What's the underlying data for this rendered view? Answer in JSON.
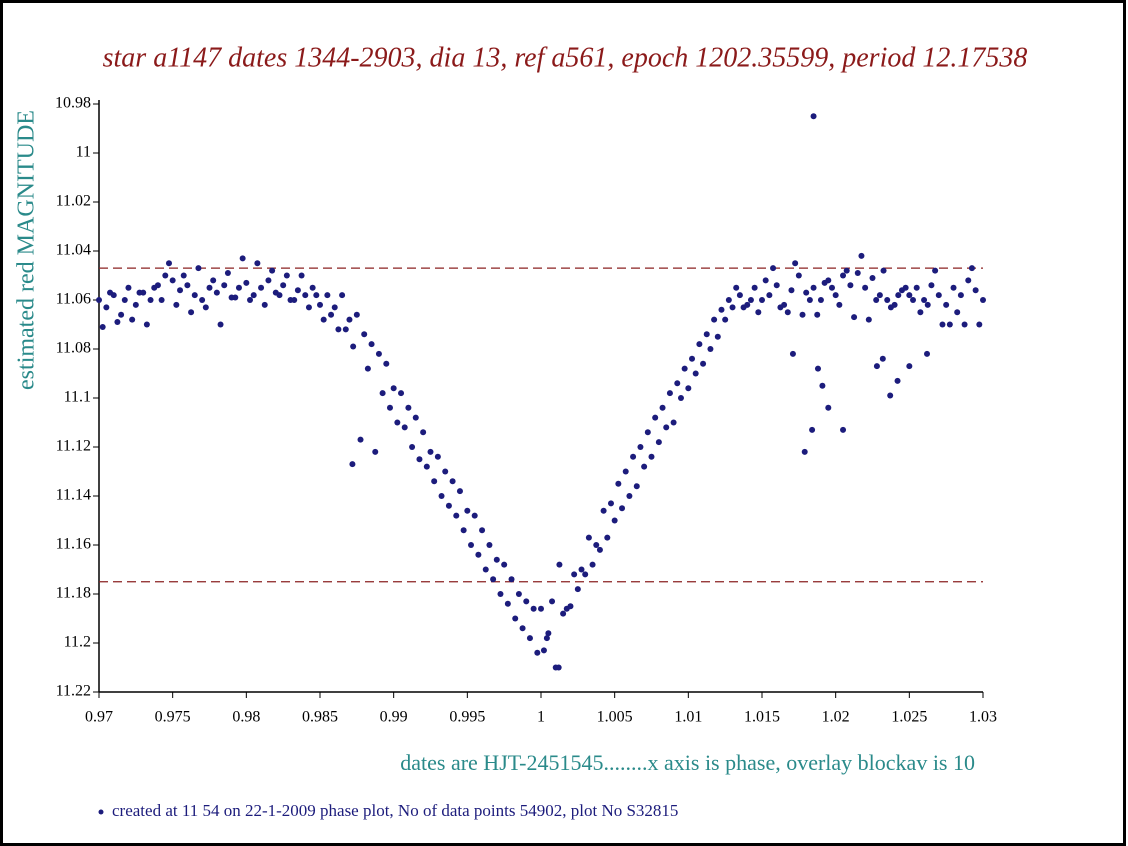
{
  "chart_data": {
    "type": "scatter",
    "title": "star a1147 dates 1344-2903, dia 13, ref a561, epoch 1202.35599, period 12.17538",
    "y_label": "estimated red MAGNITUDE",
    "x_annotation": "dates are HJT-2451545........x axis is phase, overlay blockav is 10",
    "footer": "created at 11 54 on 22-1-2009 phase plot, No of data points 54902,  plot No S32815",
    "color": "#1c1c7c",
    "reference_lines": [
      11.047,
      11.175
    ],
    "reference_color": "#8b2222",
    "y_inverted": true,
    "xlim": [
      0.97,
      1.03
    ],
    "xticks": [
      0.97,
      0.975,
      0.98,
      0.985,
      0.99,
      0.995,
      1,
      1.005,
      1.01,
      1.015,
      1.02,
      1.025,
      1.03
    ],
    "ylim": [
      10.98,
      11.22
    ],
    "yticks": [
      10.98,
      11,
      11.02,
      11.04,
      11.06,
      11.08,
      11.1,
      11.12,
      11.14,
      11.16,
      11.18,
      11.2,
      11.22
    ],
    "x": [
      0.97,
      0.9705,
      0.971,
      0.9715,
      0.972,
      0.9725,
      0.973,
      0.9735,
      0.974,
      0.9745,
      0.975,
      0.9755,
      0.976,
      0.9765,
      0.977,
      0.9775,
      0.978,
      0.9785,
      0.979,
      0.9795,
      0.98,
      0.9805,
      0.981,
      0.9815,
      0.982,
      0.9825,
      0.983,
      0.9835,
      0.984,
      0.9845,
      0.985,
      0.9855,
      0.986,
      0.97025,
      0.97075,
      0.97125,
      0.97175,
      0.97225,
      0.97275,
      0.97325,
      0.97375,
      0.97425,
      0.97475,
      0.97525,
      0.97575,
      0.97625,
      0.97675,
      0.97725,
      0.97775,
      0.97825,
      0.97875,
      0.97925,
      0.97975,
      0.98025,
      0.98075,
      0.98125,
      0.98175,
      0.98225,
      0.98275,
      0.98325,
      0.98375,
      0.98425,
      0.98475,
      0.98525,
      0.98575,
      0.98625,
      0.9865,
      0.987,
      0.9875,
      0.988,
      0.9885,
      0.989,
      0.9895,
      0.99,
      0.9905,
      0.991,
      0.9915,
      0.992,
      0.9925,
      0.993,
      0.9935,
      0.994,
      0.9945,
      0.995,
      0.9955,
      0.996,
      0.9965,
      0.997,
      0.9975,
      0.998,
      0.9985,
      0.999,
      0.9995,
      0.98675,
      0.98725,
      0.98775,
      0.98825,
      0.98875,
      0.98925,
      0.98975,
      0.99025,
      0.99075,
      0.99125,
      0.99175,
      0.99225,
      0.99275,
      0.99325,
      0.99375,
      0.99425,
      0.99475,
      0.99525,
      0.99575,
      0.99625,
      0.99675,
      0.99725,
      0.99775,
      0.99825,
      0.99875,
      0.99925,
      0.99975,
      1.0,
      1.0002,
      1.0004,
      1.0012,
      1.0005,
      1.001,
      1.0015,
      1.002,
      1.0025,
      1.003,
      1.0035,
      1.004,
      1.0045,
      1.005,
      1.0055,
      1.006,
      1.0065,
      1.007,
      1.0075,
      1.008,
      1.0085,
      1.009,
      1.0095,
      1.01,
      1.0105,
      1.011,
      1.0115,
      1.012,
      1.0125,
      1.013,
      1.00075,
      1.00125,
      1.00175,
      1.00225,
      1.00275,
      1.00325,
      1.00375,
      1.00425,
      1.00475,
      1.00525,
      1.00575,
      1.00625,
      1.00675,
      1.00725,
      1.00775,
      1.00825,
      1.00875,
      1.00925,
      1.00975,
      1.01025,
      1.01075,
      1.01125,
      1.01175,
      1.01225,
      1.01275,
      1.01325,
      1.0135,
      1.014,
      1.0145,
      1.015,
      1.0155,
      1.016,
      1.0165,
      1.017,
      1.0175,
      1.018,
      1.0185,
      1.019,
      1.0195,
      1.02,
      1.0205,
      1.021,
      1.0215,
      1.022,
      1.0225,
      1.023,
      1.0235,
      1.024,
      1.0245,
      1.025,
      1.0255,
      1.026,
      1.0265,
      1.027,
      1.0275,
      1.028,
      1.0285,
      1.029,
      1.0295,
      1.03,
      1.01375,
      1.01425,
      1.01475,
      1.01525,
      1.01575,
      1.01625,
      1.01675,
      1.01725,
      1.01775,
      1.01825,
      1.01875,
      1.01925,
      1.01975,
      1.02025,
      1.02075,
      1.02125,
      1.02175,
      1.02225,
      1.02275,
      1.02325,
      1.02375,
      1.02425,
      1.02475,
      1.02525,
      1.02575,
      1.02625,
      1.02675,
      1.02725,
      1.02775,
      1.02825,
      1.02875,
      1.02925,
      1.02975,
      1.0185,
      0.9872,
      1.0179,
      1.0184,
      1.0205,
      1.0195,
      1.0191,
      1.0188,
      1.0171,
      1.0237,
      1.0232,
      1.0228,
      1.0242,
      1.025,
      1.0262
    ],
    "values": [
      11.06,
      11.063,
      11.058,
      11.066,
      11.055,
      11.062,
      11.057,
      11.06,
      11.054,
      11.05,
      11.052,
      11.056,
      11.054,
      11.058,
      11.06,
      11.055,
      11.057,
      11.054,
      11.059,
      11.055,
      11.053,
      11.058,
      11.055,
      11.052,
      11.057,
      11.054,
      11.06,
      11.056,
      11.058,
      11.055,
      11.062,
      11.058,
      11.063,
      11.071,
      11.057,
      11.069,
      11.06,
      11.068,
      11.057,
      11.07,
      11.055,
      11.06,
      11.045,
      11.062,
      11.05,
      11.065,
      11.047,
      11.063,
      11.052,
      11.07,
      11.049,
      11.059,
      11.043,
      11.06,
      11.045,
      11.062,
      11.048,
      11.058,
      11.05,
      11.06,
      11.05,
      11.063,
      11.058,
      11.068,
      11.066,
      11.072,
      11.058,
      11.068,
      11.066,
      11.074,
      11.078,
      11.082,
      11.086,
      11.096,
      11.098,
      11.104,
      11.108,
      11.114,
      11.122,
      11.124,
      11.13,
      11.134,
      11.138,
      11.146,
      11.148,
      11.154,
      11.16,
      11.166,
      11.168,
      11.174,
      11.18,
      11.183,
      11.186,
      11.072,
      11.079,
      11.117,
      11.088,
      11.122,
      11.098,
      11.104,
      11.11,
      11.112,
      11.12,
      11.125,
      11.128,
      11.134,
      11.14,
      11.144,
      11.148,
      11.154,
      11.16,
      11.164,
      11.17,
      11.174,
      11.18,
      11.184,
      11.19,
      11.194,
      11.198,
      11.204,
      11.186,
      11.203,
      11.198,
      11.21,
      11.196,
      11.21,
      11.188,
      11.185,
      11.178,
      11.172,
      11.168,
      11.162,
      11.157,
      11.15,
      11.145,
      11.14,
      11.136,
      11.128,
      11.124,
      11.118,
      11.112,
      11.11,
      11.1,
      11.096,
      11.09,
      11.086,
      11.08,
      11.075,
      11.068,
      11.063,
      11.183,
      11.168,
      11.186,
      11.172,
      11.17,
      11.157,
      11.16,
      11.146,
      11.143,
      11.135,
      11.13,
      11.124,
      11.12,
      11.114,
      11.108,
      11.104,
      11.098,
      11.094,
      11.088,
      11.084,
      11.078,
      11.074,
      11.068,
      11.064,
      11.06,
      11.055,
      11.058,
      11.062,
      11.055,
      11.06,
      11.058,
      11.054,
      11.062,
      11.056,
      11.05,
      11.057,
      11.055,
      11.06,
      11.052,
      11.058,
      11.05,
      11.054,
      11.049,
      11.055,
      11.051,
      11.058,
      11.06,
      11.062,
      11.056,
      11.058,
      11.055,
      11.06,
      11.054,
      11.058,
      11.062,
      11.055,
      11.058,
      11.052,
      11.056,
      11.06,
      11.063,
      11.06,
      11.065,
      11.052,
      11.047,
      11.063,
      11.065,
      11.045,
      11.066,
      11.06,
      11.066,
      11.053,
      11.055,
      11.062,
      11.048,
      11.067,
      11.042,
      11.068,
      11.06,
      11.048,
      11.063,
      11.058,
      11.055,
      11.06,
      11.065,
      11.062,
      11.048,
      11.07,
      11.07,
      11.065,
      11.07,
      11.047,
      11.07,
      10.985,
      11.127,
      11.122,
      11.113,
      11.113,
      11.104,
      11.095,
      11.088,
      11.082,
      11.099,
      11.084,
      11.087,
      11.093,
      11.087,
      11.082
    ]
  }
}
